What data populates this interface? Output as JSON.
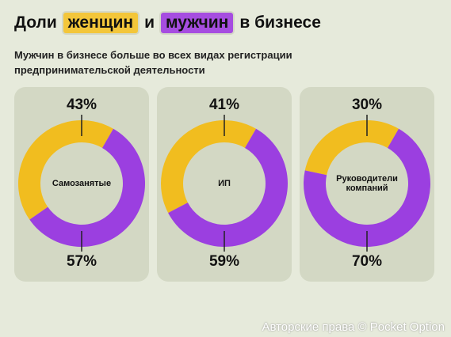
{
  "header": {
    "title_start": "Доли",
    "women": "женщин",
    "and": "и",
    "men": "мужчин",
    "title_end": "в бизнесе",
    "subtitle": "Мужчин в бизнесе больше во всех видах регистрации предпринимательской деятельности"
  },
  "chart_data": [
    {
      "type": "donut",
      "title": "Самозанятые",
      "values": [
        43,
        57
      ],
      "value_labels": [
        "43%",
        "57%"
      ],
      "colors": [
        "#f1bd1f",
        "#9b3fe0"
      ]
    },
    {
      "type": "donut",
      "title": "ИП",
      "values": [
        41,
        59
      ],
      "value_labels": [
        "41%",
        "59%"
      ],
      "colors": [
        "#f1bd1f",
        "#9b3fe0"
      ]
    },
    {
      "type": "donut",
      "title": "Руководители компаний",
      "values": [
        30,
        70
      ],
      "value_labels": [
        "30%",
        "70%"
      ],
      "colors": [
        "#f1bd1f",
        "#9b3fe0"
      ]
    }
  ],
  "watermark": "Авторские права © Pocket Option"
}
